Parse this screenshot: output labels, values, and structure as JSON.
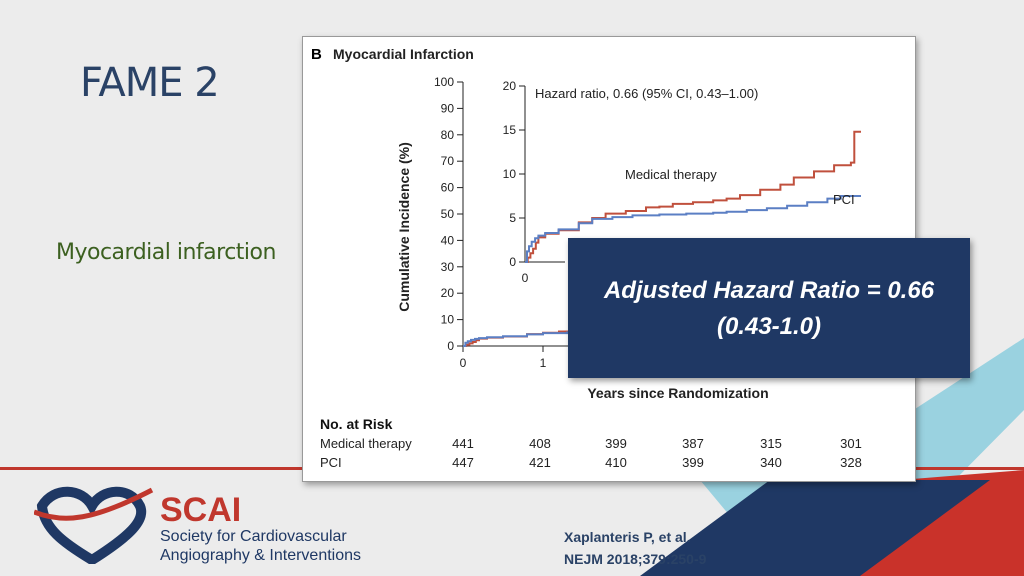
{
  "slide": {
    "title": "FAME 2",
    "subtitle": "Myocardial infarction",
    "callout_line1": "Adjusted Hazard Ratio = 0.66",
    "callout_line2": "(0.43-1.0)",
    "citation_line1": "Xaplanteris P, et al.",
    "citation_line2": "NEJM 2018;379:250-9"
  },
  "organization": {
    "name": "SCAI",
    "full_line1": "Society for Cardiovascular",
    "full_line2": "Angiography & Interventions"
  },
  "colors": {
    "medical_therapy": "#c0503d",
    "pci": "#5b7fc4",
    "navy": "#1f3864",
    "accent_red": "#c0372d"
  },
  "chart_data": {
    "type": "line",
    "panel_label": "B",
    "title": "Myocardial Infarction",
    "xlabel": "Years since Randomization",
    "ylabel": "Cumulative Incidence (%)",
    "xlim": [
      0,
      5
    ],
    "ylim": [
      0,
      100
    ],
    "yticks": [
      "0",
      "10",
      "20",
      "30",
      "40",
      "50",
      "60",
      "70",
      "80",
      "90",
      "100"
    ],
    "xticks": [
      "0",
      "1"
    ],
    "inset": {
      "ylim": [
        0,
        20
      ],
      "yticks": [
        "0",
        "5",
        "10",
        "15",
        "20"
      ],
      "xticks": [
        "0"
      ],
      "annotation": "Hazard ratio, 0.66 (95% CI, 0.43–1.00)"
    },
    "series": [
      {
        "name": "Medical therapy",
        "x": [
          0,
          0.04,
          0.08,
          0.12,
          0.16,
          0.2,
          0.3,
          0.5,
          0.8,
          1.0,
          1.2,
          1.5,
          1.8,
          2.0,
          2.2,
          2.5,
          2.8,
          3.0,
          3.2,
          3.5,
          3.8,
          4.0,
          4.3,
          4.6,
          4.85,
          4.9,
          5.0
        ],
        "y": [
          0,
          0.5,
          1.0,
          1.5,
          2.2,
          2.8,
          3.2,
          3.6,
          4.5,
          5.0,
          5.5,
          5.8,
          6.2,
          6.3,
          6.6,
          6.8,
          7.0,
          7.2,
          7.6,
          8.2,
          8.8,
          9.6,
          10.3,
          11.0,
          11.3,
          14.8,
          14.8
        ]
      },
      {
        "name": "PCI",
        "x": [
          0,
          0.03,
          0.06,
          0.1,
          0.15,
          0.2,
          0.3,
          0.5,
          0.8,
          1.0,
          1.3,
          1.6,
          2.0,
          2.4,
          2.8,
          3.0,
          3.3,
          3.6,
          3.9,
          4.2,
          4.5,
          4.7,
          5.0
        ],
        "y": [
          0,
          1.2,
          1.8,
          2.3,
          2.7,
          3.0,
          3.3,
          3.7,
          4.4,
          4.9,
          5.1,
          5.3,
          5.4,
          5.5,
          5.6,
          5.7,
          5.9,
          6.1,
          6.4,
          6.8,
          7.2,
          7.5,
          7.5
        ]
      }
    ],
    "risk_table": {
      "heading": "No. at Risk",
      "rows": [
        {
          "label": "Medical therapy",
          "values": [
            "441",
            "408",
            "399",
            "387",
            "315",
            "301"
          ]
        },
        {
          "label": "PCI",
          "values": [
            "447",
            "421",
            "410",
            "399",
            "340",
            "328"
          ]
        }
      ]
    }
  }
}
